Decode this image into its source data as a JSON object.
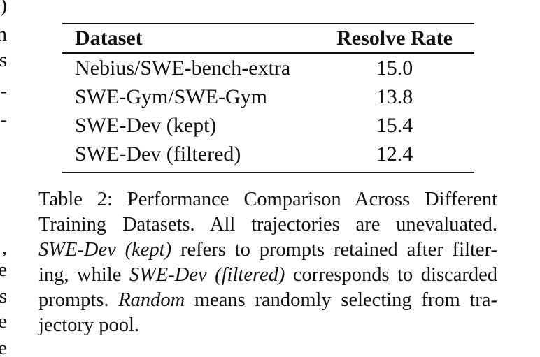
{
  "edge_fragments": [
    ")",
    "n",
    "s",
    "-",
    "-",
    ",",
    "e",
    "s",
    "e",
    "e"
  ],
  "table": {
    "headers": [
      "Dataset",
      "Resolve Rate"
    ],
    "rows": [
      [
        "Nebius/SWE-bench-extra",
        "15.0"
      ],
      [
        "SWE-Gym/SWE-Gym",
        "13.8"
      ],
      [
        "SWE-Dev (kept)",
        "15.4"
      ],
      [
        "SWE-Dev (filtered)",
        "12.4"
      ]
    ]
  },
  "caption": {
    "line1": "Table 2: Performance Comparison Across Different",
    "line2": "Training Datasets.  All trajectories are unevaluated.",
    "line3_em": "SWE-Dev (kept)",
    "line3_rest": " refers to prompts retained after filter-",
    "line4_pre": "ing, while ",
    "line4_em": "SWE-Dev (filtered)",
    "line4_rest": " corresponds to discarded",
    "line5_pre": "prompts. ",
    "line5_em": "Random",
    "line5_rest": " means randomly selecting from tra-",
    "line6": "jectory pool."
  }
}
